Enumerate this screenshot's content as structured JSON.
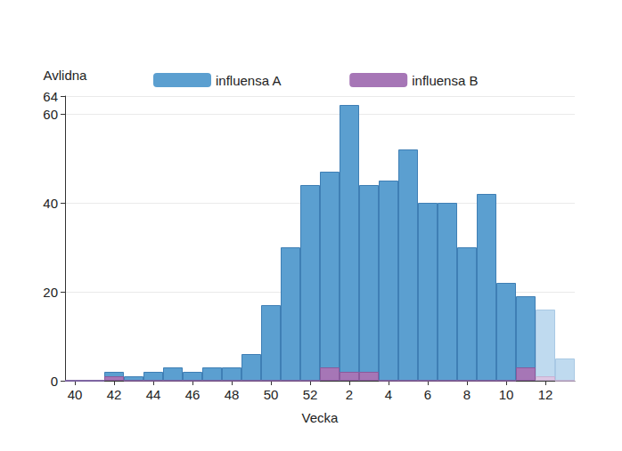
{
  "chart_data": {
    "type": "bar",
    "x_label": "Vecka",
    "y_label": "Avlidna",
    "categories": [
      "40",
      null,
      "42",
      null,
      "44",
      null,
      "46",
      null,
      "48",
      null,
      "50",
      null,
      "52",
      null,
      "2",
      null,
      "4",
      null,
      "6",
      null,
      "8",
      null,
      "10",
      null,
      "12",
      null
    ],
    "series": [
      {
        "name": "influensa A",
        "color": "#5b9fd0",
        "colors": [
          "#5b9fd0",
          "#5b9fd0",
          "#5b9fd0",
          "#5b9fd0",
          "#5b9fd0",
          "#5b9fd0",
          "#5b9fd0",
          "#5b9fd0",
          "#5b9fd0",
          "#5b9fd0",
          "#5b9fd0",
          "#5b9fd0",
          "#5b9fd0",
          "#5b9fd0",
          "#5b9fd0",
          "#5b9fd0",
          "#5b9fd0",
          "#5b9fd0",
          "#5b9fd0",
          "#5b9fd0",
          "#5b9fd0",
          "#5b9fd0",
          "#5b9fd0",
          "#5b9fd0",
          "#bfdaef",
          "#bfdaef"
        ],
        "values": [
          0,
          0,
          2,
          1,
          2,
          3,
          2,
          3,
          3,
          6,
          17,
          30,
          44,
          47,
          62,
          44,
          45,
          52,
          40,
          40,
          30,
          42,
          22,
          19,
          16,
          5
        ]
      },
      {
        "name": "influensa B",
        "color": "#a676b6",
        "colors": [
          "#a676b6",
          "#a676b6",
          "#a676b6",
          "#a676b6",
          "#a676b6",
          "#a676b6",
          "#a676b6",
          "#a676b6",
          "#a676b6",
          "#a676b6",
          "#a676b6",
          "#a676b6",
          "#a676b6",
          "#a676b6",
          "#a676b6",
          "#a676b6",
          "#a676b6",
          "#a676b6",
          "#a676b6",
          "#a676b6",
          "#a676b6",
          "#a676b6",
          "#a676b6",
          "#a676b6",
          "#dbc6e3",
          "#dbc6e3"
        ],
        "values": [
          0,
          0,
          1,
          0,
          0,
          0,
          0,
          0,
          0,
          0,
          0,
          0,
          0,
          3,
          2,
          2,
          0,
          0,
          0,
          0,
          0,
          0,
          0,
          3,
          1,
          0
        ]
      }
    ],
    "ylim": [
      0,
      64
    ],
    "yticks": [
      0,
      20,
      40,
      60
    ],
    "grid": true,
    "legend": "top",
    "stacked": false
  }
}
